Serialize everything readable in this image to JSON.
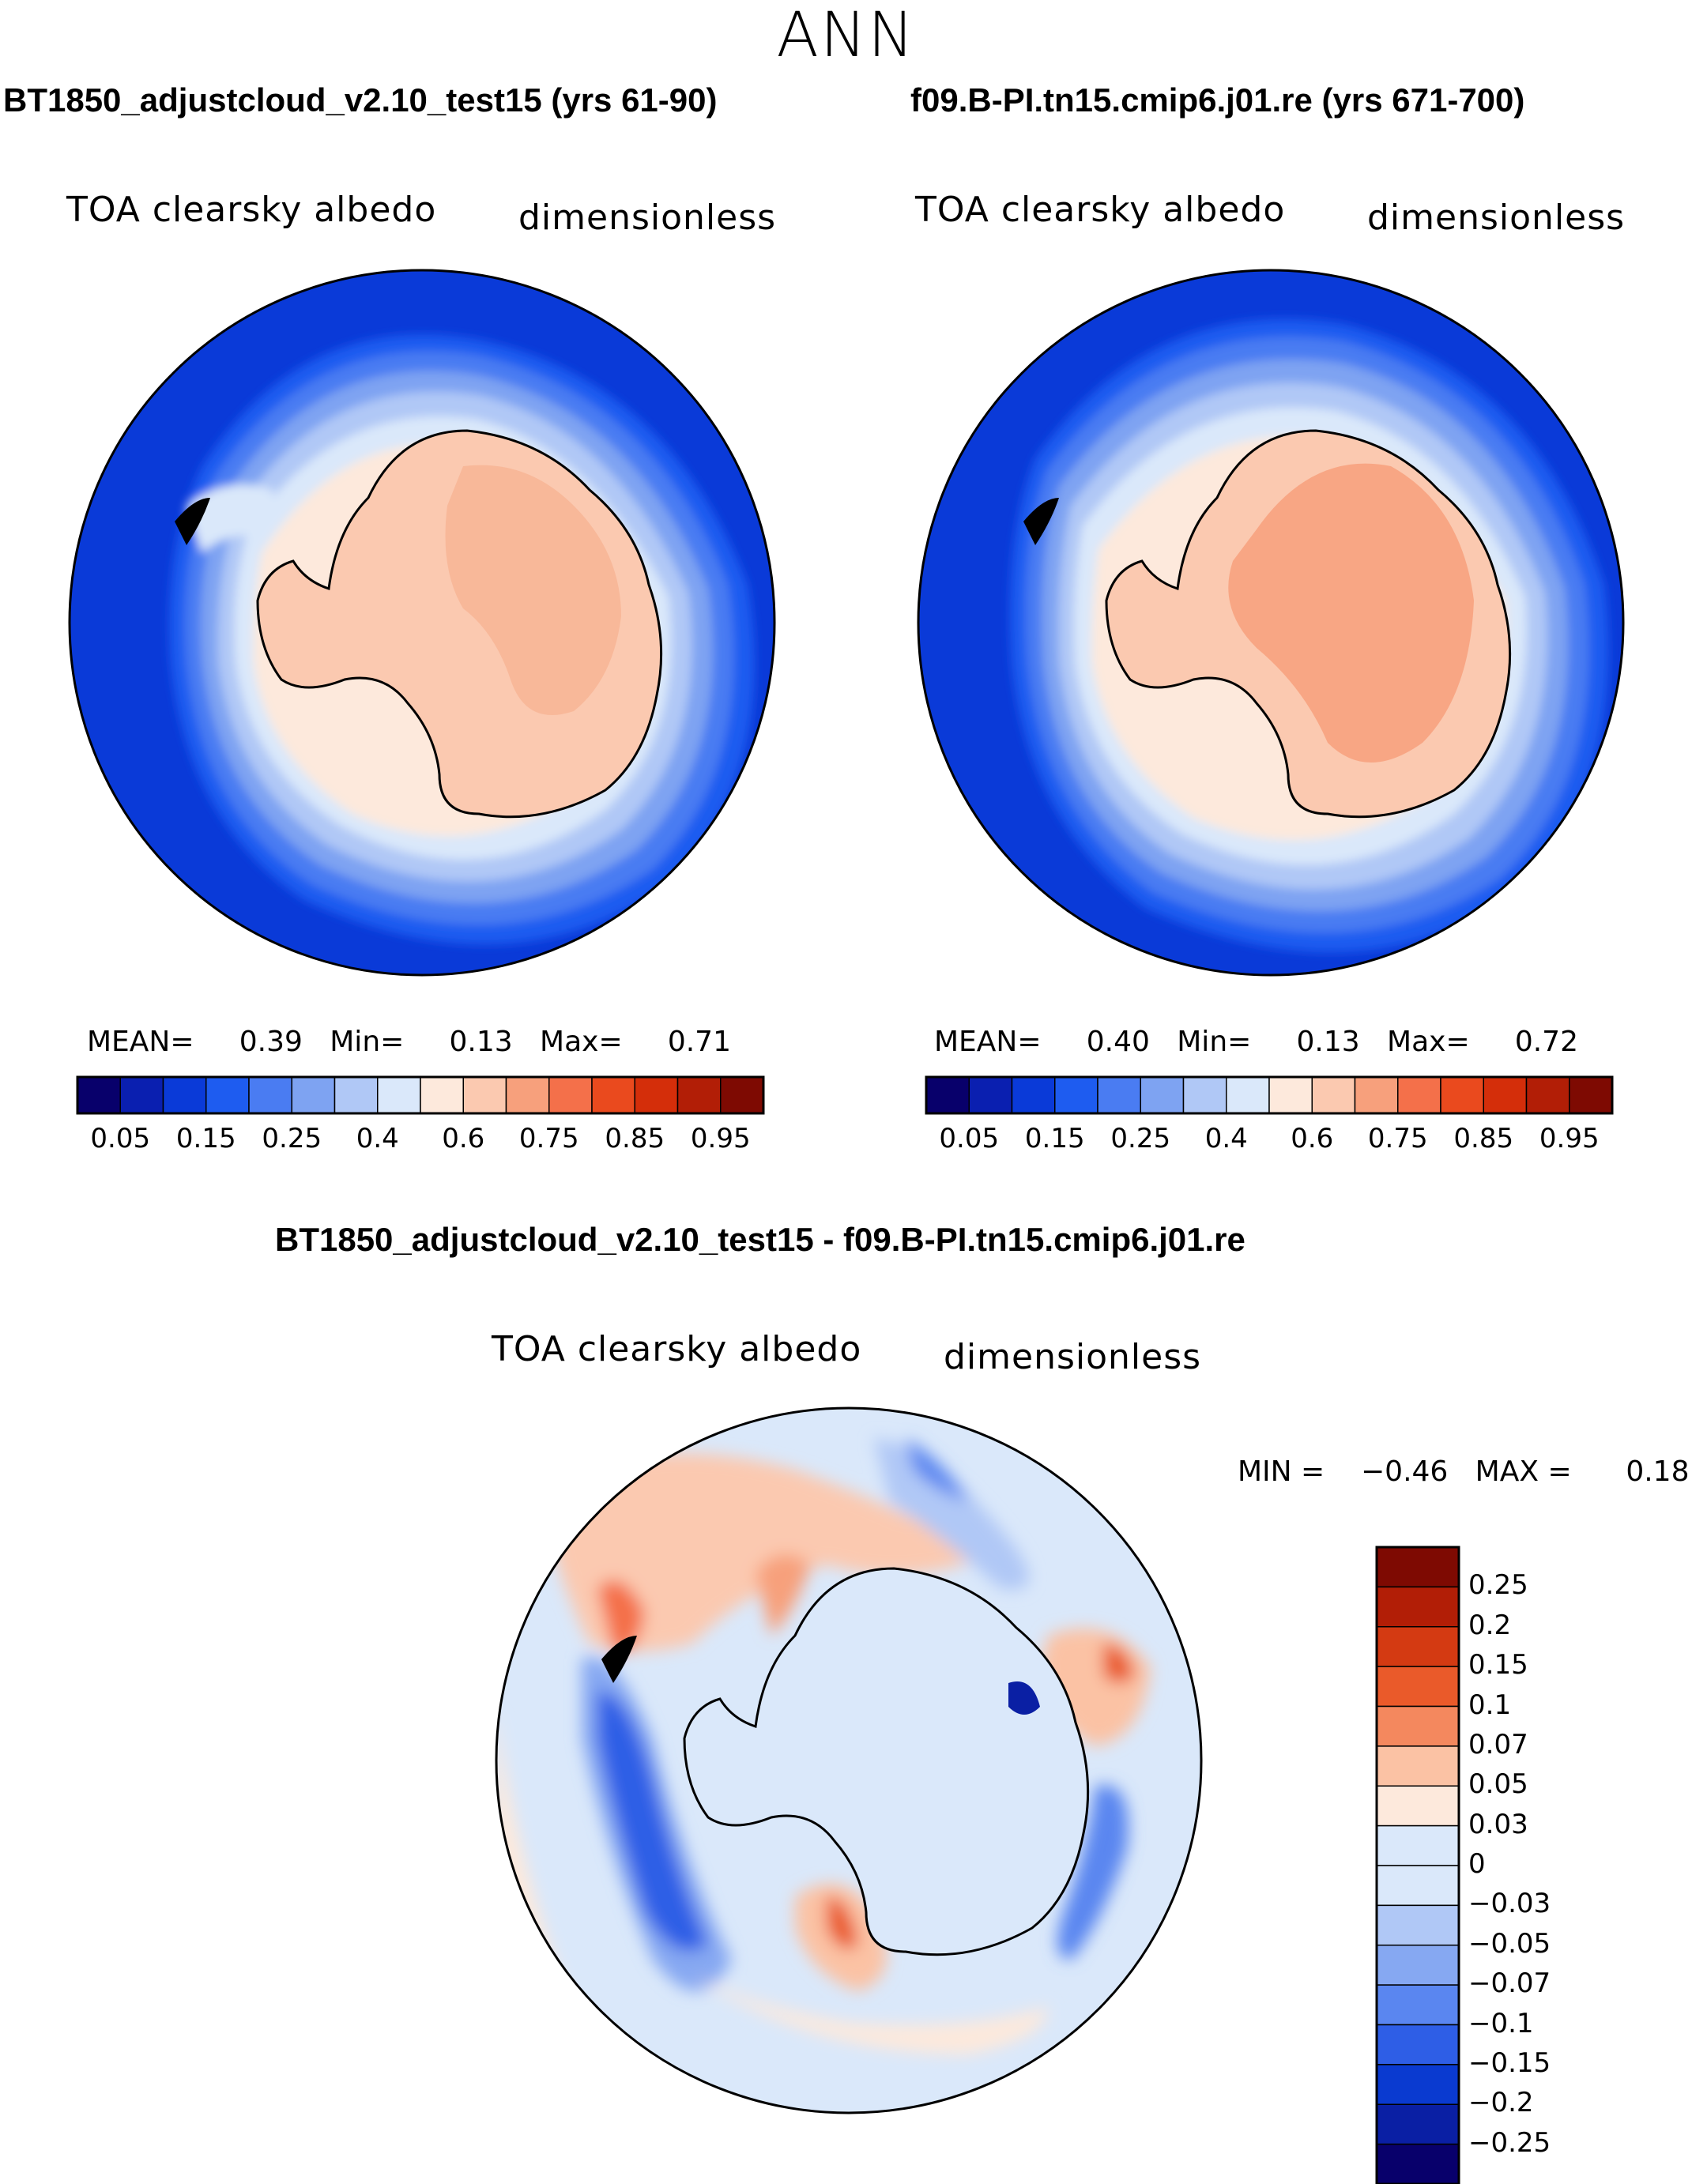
{
  "figure": {
    "season": "ANN",
    "diff_title": "BT1850_adjustcloud_v2.10_test15 - f09.B-PI.tn15.cmip6.j01.re"
  },
  "panels": [
    {
      "case_title": "BT1850_adjustcloud_v2.10_test15 (yrs 61-90)",
      "variable": "TOA clearsky albedo",
      "units": "dimensionless",
      "stats": {
        "mean_label": "MEAN=",
        "mean": "0.39",
        "min_label": "Min=",
        "min": "0.13",
        "max_label": "Max=",
        "max": "0.71"
      }
    },
    {
      "case_title": "f09.B-PI.tn15.cmip6.j01.re (yrs 671-700)",
      "variable": "TOA clearsky albedo",
      "units": "dimensionless",
      "stats": {
        "mean_label": "MEAN=",
        "mean": "0.40",
        "min_label": "Min=",
        "min": "0.13",
        "max_label": "Max=",
        "max": "0.72"
      }
    },
    {
      "variable": "TOA clearsky albedo",
      "units": "dimensionless",
      "stats": {
        "min_label": "MIN =",
        "min": "−0.46",
        "max_label": "MAX =",
        "max": "0.18"
      }
    }
  ],
  "colorbar_abs": {
    "colors": [
      "#08006b",
      "#0a1fb0",
      "#0a3ad8",
      "#1e5cf0",
      "#4a7cf2",
      "#7ea3f2",
      "#b0c8f6",
      "#dae8fa",
      "#fde9dc",
      "#fbc9b0",
      "#f7a07c",
      "#f4704a",
      "#ea4a1e",
      "#d42e0a",
      "#b21e06",
      "#7e0a02"
    ],
    "tick_labels": [
      "0.05",
      "0.15",
      "0.25",
      "0.4",
      "0.6",
      "0.75",
      "0.85",
      "0.95"
    ]
  },
  "colorbar_diff": {
    "colors": [
      "#7e0a02",
      "#b21e06",
      "#d43a12",
      "#ea5a2a",
      "#f4885e",
      "#fbc2a4",
      "#fde9dc",
      "#dae8fa",
      "#b0c8f6",
      "#86a8f2",
      "#5a86f0",
      "#2e5ee6",
      "#0a3ad0",
      "#0a1fa4",
      "#08006b"
    ],
    "tick_labels": [
      "0.25",
      "0.2",
      "0.15",
      "0.1",
      "0.07",
      "0.05",
      "0.03",
      "0",
      "−0.03",
      "−0.05",
      "−0.07",
      "−0.1",
      "−0.15",
      "−0.2",
      "−0.25"
    ]
  }
}
